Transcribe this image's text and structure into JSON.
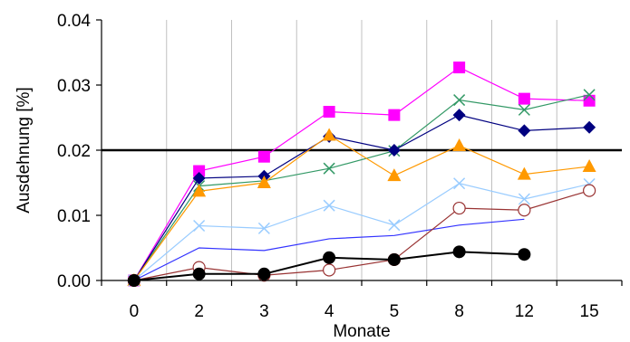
{
  "chart_data": {
    "type": "line",
    "title": "",
    "xlabel": "Monate",
    "ylabel": "Ausdehnung [%]",
    "categories": [
      "0",
      "2",
      "3",
      "4",
      "5",
      "8",
      "12",
      "15"
    ],
    "ylim": [
      0,
      0.04
    ],
    "yticks": [
      "0.00",
      "0.01",
      "0.02",
      "0.03",
      "0.04"
    ],
    "grid": "vertical",
    "threshold": {
      "value": 0.02,
      "color": "#000000"
    },
    "legend": "none",
    "series": [
      {
        "color": "#ff00ff",
        "marker": "square",
        "values": [
          0.0,
          0.0168,
          0.019,
          0.0259,
          0.0254,
          0.0327,
          0.0279,
          0.0276
        ]
      },
      {
        "color": "#339966",
        "marker": "x",
        "values": [
          0.0,
          0.0145,
          0.0153,
          0.0172,
          0.0199,
          0.0277,
          0.0262,
          0.0285
        ]
      },
      {
        "color": "#000080",
        "marker": "diamond",
        "values": [
          0.0,
          0.0157,
          0.016,
          0.0221,
          0.02,
          0.0254,
          0.023,
          0.0235
        ]
      },
      {
        "color": "#ff9900",
        "marker": "triangle",
        "values": [
          0.0,
          0.0137,
          0.015,
          0.0223,
          0.0161,
          0.0207,
          0.0163,
          0.0175
        ]
      },
      {
        "color": "#99ccff",
        "marker": "x",
        "values": [
          0.0,
          0.0084,
          0.008,
          0.0115,
          0.0085,
          0.0149,
          0.0125,
          0.0148
        ]
      },
      {
        "color": "#3333ff",
        "marker": "none",
        "values": [
          0.0,
          0.005,
          0.0046,
          0.0064,
          0.0069,
          0.0085,
          0.0094,
          null
        ]
      },
      {
        "color": "#993333",
        "marker": "open-circle",
        "values": [
          0.0,
          0.002,
          0.0008,
          0.0016,
          0.0032,
          0.0111,
          0.0108,
          0.0138
        ]
      },
      {
        "color": "#000000",
        "marker": "filled-circle",
        "values": [
          0.0,
          0.001,
          0.001,
          0.0035,
          0.0032,
          0.0044,
          0.004,
          null
        ]
      }
    ]
  }
}
